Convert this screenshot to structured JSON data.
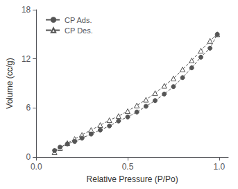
{
  "chart_data": {
    "type": "line",
    "xlabel": "Relative Pressure (P/Po)",
    "ylabel": "Volume (cc/g)",
    "series": [
      {
        "name": "CP Ads.",
        "color": "#555555",
        "marker": "circle",
        "line_style": "dashed",
        "x": [
          0.1,
          0.13,
          0.17,
          0.21,
          0.25,
          0.3,
          0.35,
          0.4,
          0.45,
          0.5,
          0.55,
          0.6,
          0.65,
          0.7,
          0.75,
          0.8,
          0.85,
          0.9,
          0.95,
          0.99
        ],
        "values": [
          0.8,
          1.2,
          1.6,
          1.9,
          2.3,
          2.8,
          3.3,
          3.8,
          4.4,
          4.9,
          5.5,
          6.2,
          6.9,
          7.7,
          8.6,
          9.7,
          10.9,
          12.2,
          13.3,
          15.0
        ]
      },
      {
        "name": "CP Des.",
        "color": "#555555",
        "marker": "triangle",
        "line_style": "dashed",
        "x": [
          0.1,
          0.13,
          0.17,
          0.21,
          0.25,
          0.3,
          0.35,
          0.4,
          0.45,
          0.5,
          0.55,
          0.6,
          0.65,
          0.7,
          0.75,
          0.8,
          0.85,
          0.9,
          0.95,
          0.99
        ],
        "values": [
          0.6,
          1.1,
          1.7,
          2.2,
          2.7,
          3.3,
          3.9,
          4.5,
          5.0,
          5.6,
          6.3,
          7.0,
          7.8,
          8.7,
          9.6,
          10.7,
          11.8,
          13.0,
          14.2,
          15.0
        ]
      }
    ],
    "xlim": [
      0.0,
      1.05
    ],
    "ylim": [
      0,
      18
    ],
    "xticks": [
      {
        "value": 0.0,
        "label": "0.0"
      },
      0.5,
      {
        "value": 1.0,
        "label": "1.0"
      }
    ],
    "yticks": [
      0,
      6,
      12,
      18
    ],
    "grid": false,
    "legend": "upper left"
  }
}
